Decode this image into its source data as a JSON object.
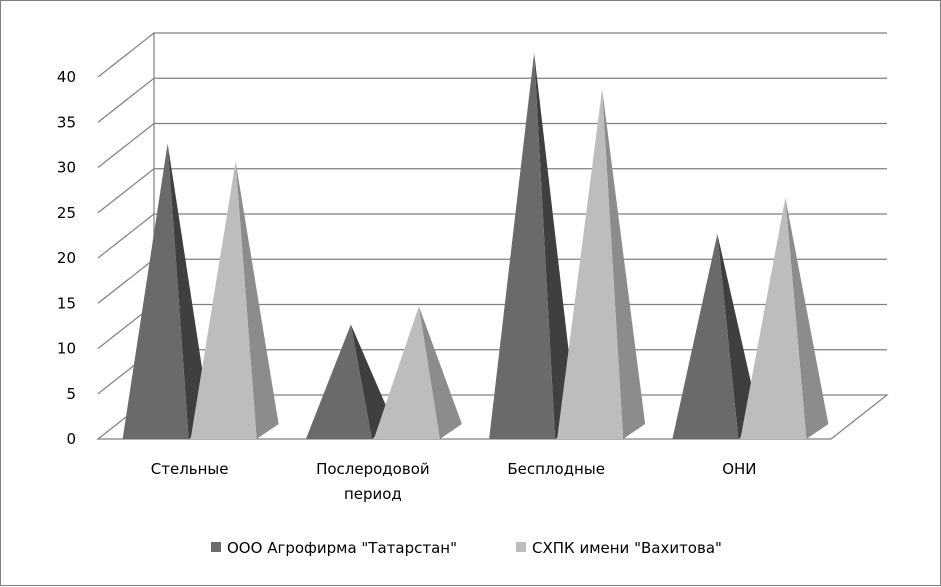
{
  "chart_data": {
    "type": "bar",
    "bar_shape": "pyramid-3d",
    "categories": [
      [
        "Стельные"
      ],
      [
        "Послеродовой",
        "период"
      ],
      [
        "Бесплодные"
      ],
      [
        "ОНИ"
      ]
    ],
    "series": [
      {
        "name": "ООО Агрофирма \"Татарстан\"",
        "values": [
          31,
          11,
          41,
          21
        ],
        "color": "#6a6a6a",
        "shade": "#3f3f3f"
      },
      {
        "name": "СХПК имени \"Вахитова\"",
        "values": [
          29,
          13,
          37,
          25
        ],
        "color": "#bdbdbd",
        "shade": "#8c8c8c"
      }
    ],
    "ylim": [
      0,
      40
    ],
    "yticks": [
      "0",
      "5",
      "10",
      "15",
      "20",
      "25",
      "30",
      "35",
      "40"
    ],
    "grid": true,
    "legend": "bottom",
    "title": "",
    "xlabel": "",
    "ylabel": ""
  }
}
